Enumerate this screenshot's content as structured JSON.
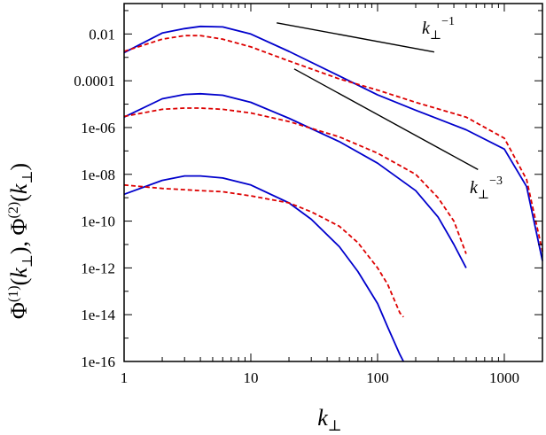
{
  "chart_data": {
    "type": "line",
    "title": "",
    "xlabel": "k_⊥",
    "ylabel": "Φ(1)(k⊥), Φ(2)(k⊥)",
    "xscale": "log",
    "yscale": "log",
    "xlim": [
      1,
      2000
    ],
    "ylim": [
      1e-16,
      0.2
    ],
    "grid": false,
    "x_ticks": [
      "1",
      "10",
      "100",
      "1000"
    ],
    "y_ticks": [
      "1e-16",
      "1e-14",
      "1e-12",
      "1e-10",
      "1e-08",
      "1e-06",
      "0.0001",
      "0.01"
    ],
    "series": [
      {
        "group": "upper",
        "style": "solid",
        "color": "#0000cc",
        "x": [
          1,
          2,
          3,
          4,
          6,
          10,
          20,
          50,
          100,
          200,
          500,
          1000,
          1500,
          2000
        ],
        "y": [
          0.0016,
          0.011,
          0.017,
          0.021,
          0.02,
          0.01,
          0.0018,
          0.00016,
          2.5e-05,
          5.5e-06,
          8e-07,
          1.2e-07,
          3e-09,
          2e-12
        ]
      },
      {
        "group": "upper",
        "style": "dashed",
        "color": "#dd0000",
        "x": [
          1,
          2,
          3,
          4,
          6,
          10,
          20,
          50,
          100,
          200,
          500,
          1000,
          1500,
          2000
        ],
        "y": [
          0.0018,
          0.006,
          0.0085,
          0.0085,
          0.006,
          0.0028,
          0.0007,
          0.00012,
          4e-05,
          1.2e-05,
          2.8e-06,
          3.5e-07,
          6e-09,
          5e-12
        ]
      },
      {
        "group": "middle",
        "style": "solid",
        "color": "#0000cc",
        "x": [
          1,
          2,
          3,
          4,
          6,
          10,
          20,
          50,
          100,
          200,
          300,
          400,
          500
        ],
        "y": [
          2.8e-06,
          1.7e-05,
          2.6e-05,
          2.8e-05,
          2.4e-05,
          1.2e-05,
          2.5e-06,
          2.5e-07,
          3e-08,
          2e-09,
          1.5e-10,
          1e-11,
          1e-12
        ]
      },
      {
        "group": "middle",
        "style": "dashed",
        "color": "#dd0000",
        "x": [
          1,
          2,
          3,
          4,
          6,
          10,
          20,
          50,
          100,
          200,
          300,
          400,
          500
        ],
        "y": [
          3e-06,
          6e-06,
          6.8e-06,
          6.8e-06,
          6e-06,
          4.2e-06,
          1.8e-06,
          4e-07,
          8e-08,
          1e-08,
          1e-09,
          1e-10,
          4e-12
        ]
      },
      {
        "group": "lower",
        "style": "solid",
        "color": "#0000cc",
        "x": [
          1,
          2,
          3,
          4,
          6,
          10,
          20,
          30,
          50,
          70,
          100,
          120,
          150,
          160
        ],
        "y": [
          1.4e-09,
          5.5e-09,
          8.5e-09,
          8.5e-09,
          7e-09,
          3.5e-09,
          6e-10,
          1.2e-10,
          8e-12,
          7e-13,
          3e-14,
          3e-15,
          2e-16,
          1e-16
        ]
      },
      {
        "group": "lower",
        "style": "dashed",
        "color": "#dd0000",
        "x": [
          1,
          2,
          3,
          4,
          6,
          10,
          20,
          30,
          50,
          70,
          100,
          120,
          150,
          160
        ],
        "y": [
          3.5e-09,
          2.5e-09,
          2.2e-09,
          2e-09,
          1.8e-09,
          1.2e-09,
          6e-10,
          2.5e-10,
          6e-11,
          1.2e-11,
          1e-12,
          2e-13,
          1.2e-14,
          8e-15
        ]
      }
    ],
    "reference_lines": [
      {
        "label": "k_⊥^-1",
        "slope": -1,
        "x": [
          16,
          280
        ],
        "y": [
          0.03,
          0.0017
        ]
      },
      {
        "label": "k_⊥^-3",
        "slope": -3,
        "x": [
          22,
          620
        ],
        "y": [
          0.00032,
          1.6e-08
        ]
      }
    ],
    "annotations": [
      {
        "text": "k",
        "sub": "⊥",
        "sup": "−1"
      },
      {
        "text": "k",
        "sub": "⊥",
        "sup": "−3"
      }
    ],
    "colors": {
      "solid": "#0000cc",
      "dashed": "#dd0000",
      "reference": "#000000"
    }
  }
}
